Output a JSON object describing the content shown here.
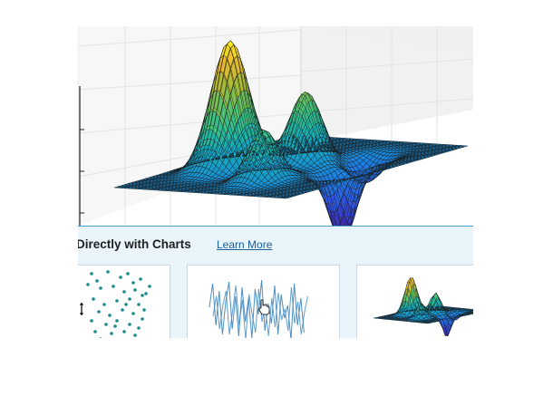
{
  "page": {
    "background": "#ffffff"
  },
  "hero_chart": {
    "type": "surface",
    "description_colormap": "parula",
    "colors": {
      "pane": "#f0f0f0",
      "grid": "#e3e3e3",
      "axis": "#1c1c1c",
      "mesh": "#1a1a1a"
    }
  },
  "band": {
    "title": "Directly with Charts",
    "link_label": "Learn More",
    "background": "#e9f4fb",
    "link_color": "#1a5fa0"
  },
  "thumbnails": [
    {
      "kind": "scatter",
      "icon": "vertical-resize-cursor-icon",
      "dot_color": "#1b8c8c"
    },
    {
      "kind": "line",
      "icon": "hand-pointer-cursor-icon",
      "line_color": "#4b8fc6"
    },
    {
      "kind": "surface"
    }
  ]
}
